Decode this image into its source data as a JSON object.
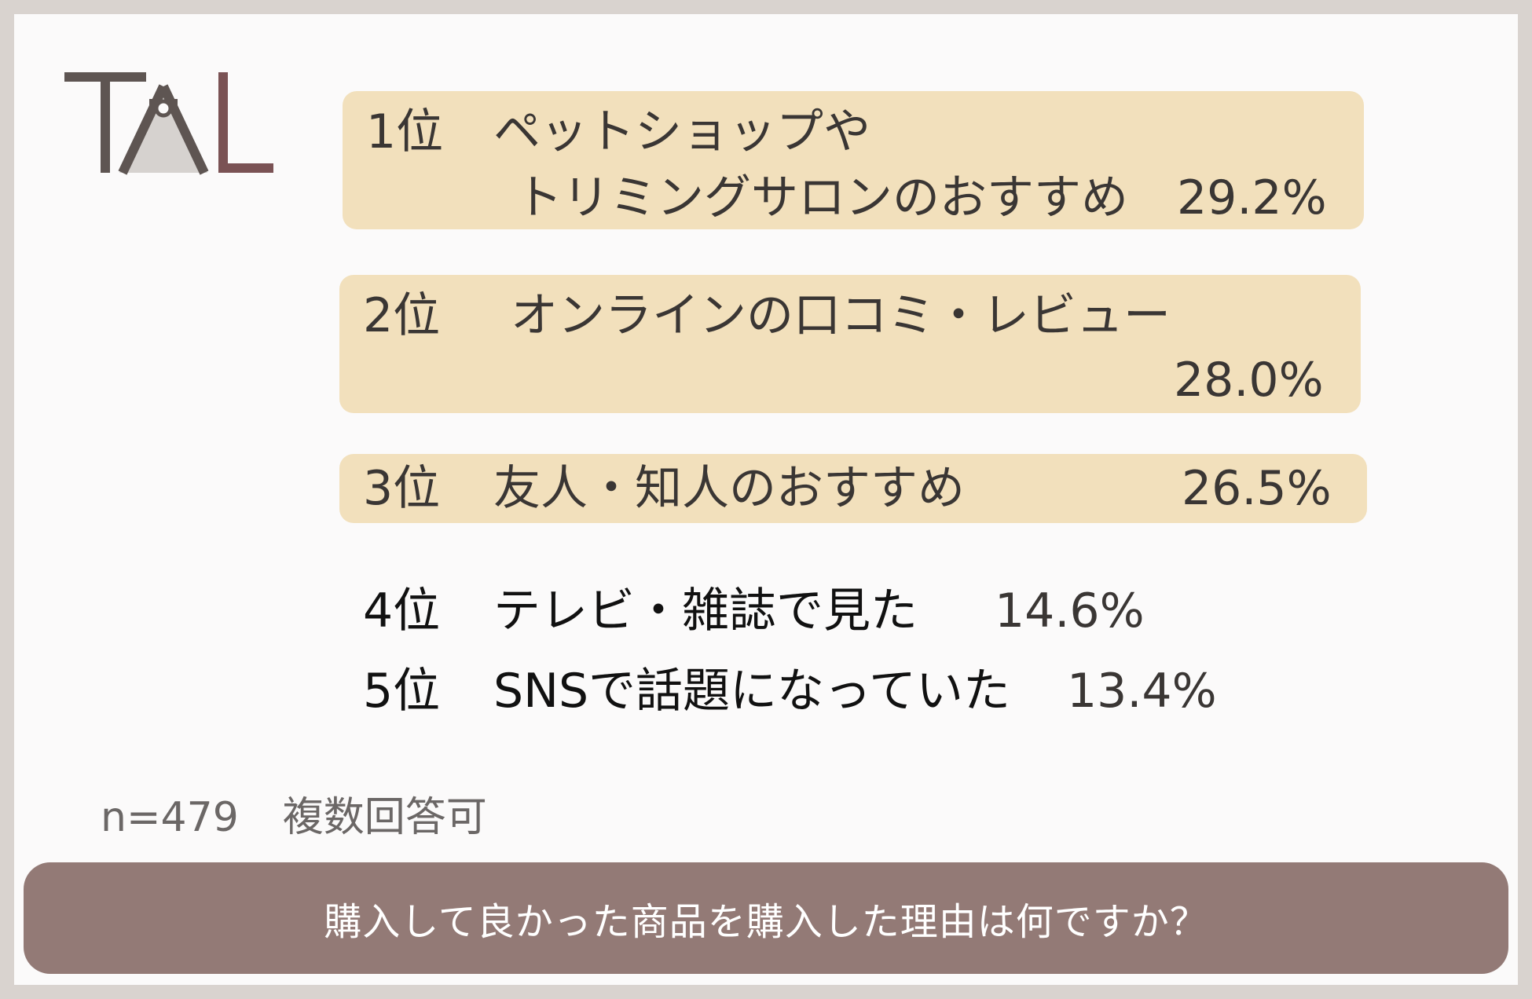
{
  "logo": {
    "text": "TAL",
    "colors": {
      "t": "#5e5552",
      "a": "#5e5552",
      "l": "#7a5254",
      "fill": "#d6d2cf"
    }
  },
  "chart_data": {
    "type": "table",
    "title": "購入して良かった商品を購入した理由は何ですか？",
    "rows": [
      {
        "rank": "1位",
        "label_line1": "ペットショップや",
        "label_line2": "トリミングサロンのおすすめ",
        "value": 29.2,
        "value_text": "29.2%",
        "highlight": true
      },
      {
        "rank": "2位",
        "label_line1": "オンラインの口コミ・レビュー",
        "label_line2": "",
        "value": 28.0,
        "value_text": "28.0%",
        "highlight": true
      },
      {
        "rank": "3位",
        "label_line1": "友人・知人のおすすめ",
        "label_line2": "",
        "value": 26.5,
        "value_text": "26.5%",
        "highlight": true
      },
      {
        "rank": "4位",
        "label_line1": "テレビ・雑誌で見た",
        "label_line2": "",
        "value": 14.6,
        "value_text": "14.6%",
        "highlight": false
      },
      {
        "rank": "5位",
        "label_line1": "SNSで話題になっていた",
        "label_line2": "",
        "value": 13.4,
        "value_text": "13.4%",
        "highlight": false
      }
    ],
    "note_n": "n=479",
    "note_multi": "複数回答可"
  },
  "colors": {
    "highlight_box": "#f2e0bc",
    "footer_bg": "#937a76",
    "card_bg": "#fbfafa",
    "frame": "#d9d3cf"
  }
}
